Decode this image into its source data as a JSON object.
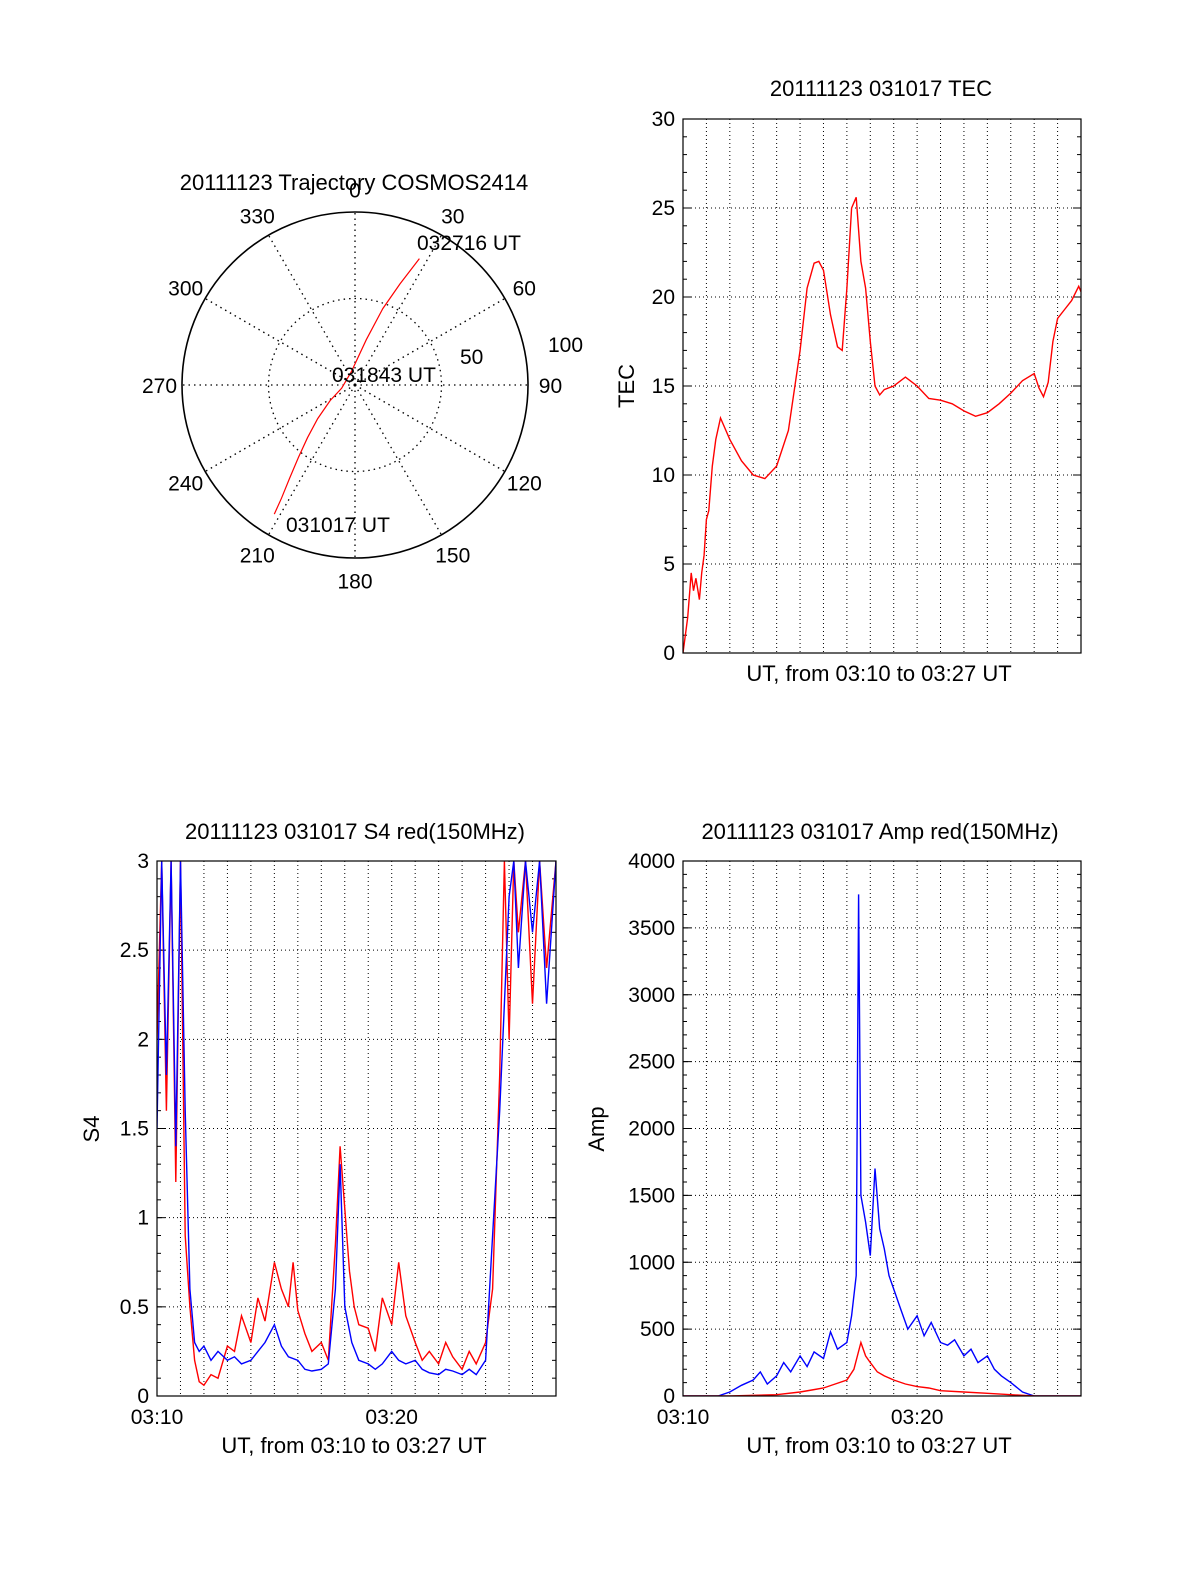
{
  "colors": {
    "red": "#ff0000",
    "blue": "#0000ff",
    "axis": "#000000",
    "grid": "#000000"
  },
  "chart_data": [
    {
      "id": "trajectory",
      "type": "polar",
      "title": "20111123 Trajectory COSMOS2414",
      "angle_labels": [
        "0",
        "30",
        "60",
        "90",
        "120",
        "150",
        "180",
        "210",
        "240",
        "270",
        "300",
        "330"
      ],
      "radial_labels": [
        "50",
        "100"
      ],
      "radial_range": [
        0,
        100
      ],
      "grid": true,
      "track": {
        "points": [
          {
            "azimuth": 212,
            "radius": 88
          },
          {
            "azimuth": 213,
            "radius": 78
          },
          {
            "azimuth": 215,
            "radius": 66
          },
          {
            "azimuth": 218,
            "radius": 53
          },
          {
            "azimuth": 222,
            "radius": 41
          },
          {
            "azimuth": 228,
            "radius": 29
          },
          {
            "azimuth": 238,
            "radius": 17
          },
          {
            "azimuth": 256,
            "radius": 8
          },
          {
            "azimuth": 345,
            "radius": 8
          },
          {
            "azimuth": 14,
            "radius": 27
          },
          {
            "azimuth": 20,
            "radius": 47
          },
          {
            "azimuth": 24,
            "radius": 64
          },
          {
            "azimuth": 27,
            "radius": 82
          }
        ]
      },
      "annotations": [
        "032716 UT",
        "031843 UT",
        "031017 UT"
      ]
    },
    {
      "id": "tec",
      "type": "line",
      "title": "20111123 031017 TEC",
      "xlabel": "UT, from 03:10 to 03:27 UT",
      "ylabel": "TEC",
      "xlim": [
        0,
        17
      ],
      "ylim": [
        0,
        30
      ],
      "yticks": [
        "0",
        "5",
        "10",
        "15",
        "20",
        "25",
        "30"
      ],
      "grid": true,
      "series": [
        {
          "color": "red",
          "x": [
            0.0,
            0.2,
            0.35,
            0.45,
            0.55,
            0.7,
            0.8,
            0.9,
            1.0,
            1.1,
            1.25,
            1.4,
            1.6,
            2.0,
            2.5,
            3.0,
            3.5,
            4.0,
            4.5,
            5.0,
            5.3,
            5.6,
            5.8,
            6.0,
            6.3,
            6.6,
            6.8,
            7.0,
            7.2,
            7.4,
            7.6,
            7.8,
            8.0,
            8.2,
            8.4,
            8.6,
            9.0,
            9.5,
            10.0,
            10.5,
            11.0,
            11.5,
            12.0,
            12.5,
            13.0,
            13.5,
            14.0,
            14.5,
            15.0,
            15.2,
            15.4,
            15.6,
            15.8,
            16.0,
            16.3,
            16.6,
            16.9,
            17.0
          ],
          "y": [
            0.0,
            2.0,
            4.5,
            3.5,
            4.2,
            3.0,
            4.5,
            5.5,
            7.5,
            8.0,
            10.5,
            12.0,
            13.2,
            12.0,
            10.8,
            10.0,
            9.8,
            10.5,
            12.5,
            17.0,
            20.5,
            21.9,
            22.0,
            21.5,
            19.0,
            17.2,
            17.0,
            20.5,
            25.0,
            25.6,
            22.0,
            20.5,
            17.5,
            15.0,
            14.5,
            14.8,
            15.0,
            15.5,
            15.0,
            14.3,
            14.2,
            14.0,
            13.6,
            13.3,
            13.5,
            14.0,
            14.6,
            15.3,
            15.7,
            14.9,
            14.4,
            15.2,
            17.5,
            18.8,
            19.3,
            19.8,
            20.6,
            20.3
          ]
        }
      ]
    },
    {
      "id": "s4",
      "type": "line",
      "title": "20111123 031017 S4 red(150MHz)",
      "xlabel": "UT, from 03:10 to 03:27 UT",
      "ylabel": "S4",
      "xlim": [
        0,
        17
      ],
      "ylim": [
        0,
        3
      ],
      "yticks": [
        "0",
        "0.5",
        "1",
        "1.5",
        "2",
        "2.5",
        "3"
      ],
      "xticks": [
        {
          "value": 0,
          "label": "03:10"
        },
        {
          "value": 10,
          "label": "03:20"
        }
      ],
      "grid": true,
      "series": [
        {
          "color": "red",
          "x": [
            0.0,
            0.2,
            0.4,
            0.6,
            0.8,
            1.0,
            1.2,
            1.4,
            1.6,
            1.8,
            2.0,
            2.3,
            2.6,
            3.0,
            3.3,
            3.6,
            4.0,
            4.3,
            4.6,
            5.0,
            5.3,
            5.6,
            5.8,
            6.0,
            6.3,
            6.6,
            7.0,
            7.3,
            7.6,
            7.8,
            8.0,
            8.2,
            8.4,
            8.6,
            9.0,
            9.3,
            9.6,
            10.0,
            10.3,
            10.6,
            11.0,
            11.3,
            11.6,
            12.0,
            12.3,
            12.6,
            13.0,
            13.3,
            13.6,
            14.0,
            14.3,
            14.6,
            14.8,
            15.0,
            15.2,
            15.4,
            15.7,
            16.0,
            16.3,
            16.6,
            17.0
          ],
          "y": [
            2.0,
            3.0,
            1.6,
            3.0,
            1.2,
            3.0,
            0.9,
            0.5,
            0.2,
            0.08,
            0.06,
            0.12,
            0.1,
            0.28,
            0.25,
            0.45,
            0.3,
            0.55,
            0.42,
            0.75,
            0.6,
            0.5,
            0.75,
            0.48,
            0.35,
            0.25,
            0.3,
            0.2,
            0.85,
            1.4,
            1.05,
            0.7,
            0.5,
            0.4,
            0.38,
            0.25,
            0.55,
            0.4,
            0.75,
            0.45,
            0.3,
            0.2,
            0.25,
            0.18,
            0.3,
            0.22,
            0.15,
            0.25,
            0.18,
            0.3,
            0.6,
            1.8,
            3.0,
            2.0,
            3.0,
            2.6,
            3.0,
            2.2,
            3.0,
            2.4,
            3.0
          ]
        },
        {
          "color": "blue",
          "x": [
            0.0,
            0.2,
            0.4,
            0.6,
            0.8,
            1.0,
            1.2,
            1.4,
            1.6,
            1.8,
            2.0,
            2.3,
            2.6,
            3.0,
            3.3,
            3.6,
            4.0,
            4.3,
            4.6,
            5.0,
            5.3,
            5.6,
            6.0,
            6.3,
            6.6,
            7.0,
            7.3,
            7.6,
            7.8,
            8.0,
            8.3,
            8.6,
            9.0,
            9.3,
            9.6,
            10.0,
            10.3,
            10.6,
            11.0,
            11.3,
            11.6,
            12.0,
            12.3,
            12.6,
            13.0,
            13.3,
            13.6,
            14.0,
            14.3,
            14.6,
            14.8,
            15.0,
            15.2,
            15.4,
            15.7,
            16.0,
            16.3,
            16.6,
            17.0
          ],
          "y": [
            1.5,
            3.0,
            1.8,
            3.0,
            1.4,
            3.0,
            1.6,
            0.6,
            0.3,
            0.25,
            0.28,
            0.2,
            0.25,
            0.2,
            0.22,
            0.18,
            0.2,
            0.25,
            0.3,
            0.4,
            0.28,
            0.22,
            0.2,
            0.15,
            0.14,
            0.15,
            0.18,
            0.6,
            1.3,
            0.5,
            0.3,
            0.2,
            0.18,
            0.15,
            0.18,
            0.25,
            0.2,
            0.18,
            0.2,
            0.15,
            0.13,
            0.12,
            0.15,
            0.14,
            0.12,
            0.15,
            0.12,
            0.2,
            0.9,
            1.6,
            2.2,
            2.8,
            3.0,
            2.4,
            3.0,
            2.6,
            3.0,
            2.2,
            3.0
          ]
        }
      ]
    },
    {
      "id": "amp",
      "type": "line",
      "title": "20111123 031017 Amp red(150MHz)",
      "xlabel": "UT, from 03:10 to 03:27 UT",
      "ylabel": "Amp",
      "xlim": [
        0,
        17
      ],
      "ylim": [
        0,
        4000
      ],
      "yticks": [
        "0",
        "500",
        "1000",
        "1500",
        "2000",
        "2500",
        "3000",
        "3500",
        "4000"
      ],
      "xticks": [
        {
          "value": 0,
          "label": "03:10"
        },
        {
          "value": 10,
          "label": "03:20"
        }
      ],
      "grid": true,
      "series": [
        {
          "color": "blue",
          "x": [
            0.0,
            1.0,
            1.5,
            2.0,
            2.5,
            3.0,
            3.3,
            3.6,
            4.0,
            4.3,
            4.6,
            5.0,
            5.3,
            5.6,
            6.0,
            6.3,
            6.6,
            7.0,
            7.2,
            7.4,
            7.5,
            7.6,
            7.8,
            8.0,
            8.2,
            8.4,
            8.6,
            8.8,
            9.0,
            9.3,
            9.6,
            10.0,
            10.3,
            10.6,
            11.0,
            11.3,
            11.6,
            12.0,
            12.3,
            12.6,
            13.0,
            13.3,
            13.6,
            14.0,
            14.5,
            15.0,
            17.0
          ],
          "y": [
            0,
            0,
            0,
            30,
            80,
            120,
            180,
            90,
            150,
            250,
            180,
            300,
            220,
            330,
            280,
            480,
            350,
            400,
            600,
            900,
            3750,
            1500,
            1300,
            1050,
            1700,
            1250,
            1100,
            900,
            800,
            650,
            500,
            600,
            450,
            550,
            400,
            380,
            420,
            300,
            350,
            250,
            300,
            200,
            150,
            100,
            30,
            0,
            0
          ]
        },
        {
          "color": "red",
          "x": [
            0.0,
            2.0,
            3.0,
            4.0,
            5.0,
            5.5,
            6.0,
            6.5,
            7.0,
            7.3,
            7.6,
            7.8,
            8.0,
            8.3,
            8.6,
            9.0,
            9.5,
            10.0,
            10.5,
            11.0,
            12.0,
            13.0,
            14.0,
            15.0,
            17.0
          ],
          "y": [
            0,
            0,
            5,
            10,
            30,
            45,
            60,
            90,
            120,
            200,
            400,
            300,
            250,
            180,
            150,
            120,
            90,
            70,
            60,
            40,
            30,
            20,
            10,
            0,
            0
          ]
        }
      ]
    }
  ]
}
